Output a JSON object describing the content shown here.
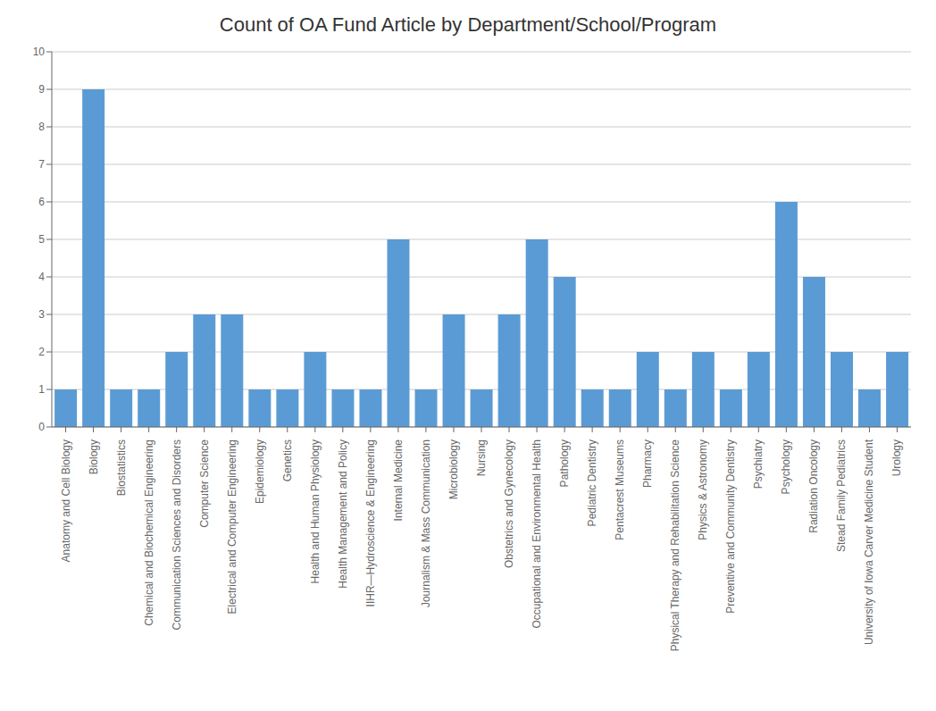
{
  "chart_data": {
    "type": "bar",
    "title": "Count of OA Fund Article by Department/School/Program",
    "categories": [
      "Anatomy and Cell Biology",
      "Biology",
      "Biostatistics",
      "Chemical and Biochemical Engineering",
      "Communication Sciences and Disorders",
      "Computer Science",
      "Electrical and Computer Engineering",
      "Epidemiology",
      "Genetics",
      "Health and Human Physiology",
      "Health Management and Policy",
      "IIHR—Hydroscience & Engineering",
      "Internal Medicine",
      "Journalism & Mass Communication",
      "Microbiology",
      "Nursing",
      "Obstetrics and Gynecology",
      "Occupational and Environmental Health",
      "Pathology",
      "Pediatric Dentistry",
      "Pentacrest Museums",
      "Pharmacy",
      "Physical Therapy and Rehabilitation Science",
      "Physics & Astronomy",
      "Preventive and Community Dentistry",
      "Psychiatry",
      "Psychology",
      "Radiation Oncology",
      "Stead Family Pediatrics",
      "University of Iowa Carver Medicine Student",
      "Urology"
    ],
    "values": [
      1,
      9,
      1,
      1,
      2,
      3,
      3,
      1,
      1,
      2,
      1,
      1,
      5,
      1,
      3,
      1,
      3,
      5,
      4,
      1,
      1,
      2,
      1,
      2,
      1,
      2,
      6,
      4,
      2,
      1,
      2
    ],
    "color": "#5B9BD5",
    "ylim": [
      0,
      10
    ],
    "yticks": [
      0,
      1,
      2,
      3,
      4,
      5,
      6,
      7,
      8,
      9,
      10
    ],
    "grid": true
  }
}
